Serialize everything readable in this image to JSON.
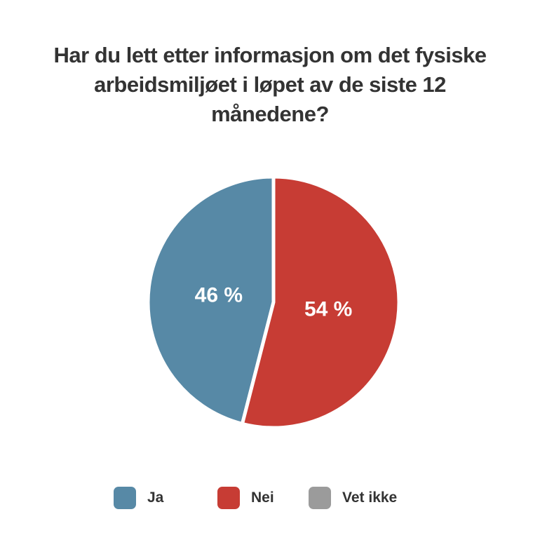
{
  "chart_data": {
    "type": "pie",
    "title": "Har du lett etter informasjon om det fysiske arbeidsmiljøet i løpet av de siste 12 månedene?",
    "categories": [
      "Ja",
      "Nei",
      "Vet ikke"
    ],
    "values": [
      46,
      54,
      0
    ],
    "data_labels": [
      "46 %",
      "54 %",
      ""
    ],
    "colors": [
      "#5789a6",
      "#c73c34",
      "#9b9b9b"
    ],
    "legend_position": "bottom"
  },
  "legend": {
    "items": [
      {
        "label": "Ja",
        "color": "#5789a6"
      },
      {
        "label": "Nei",
        "color": "#c73c34"
      },
      {
        "label": "Vet ikke",
        "color": "#9b9b9b"
      }
    ]
  }
}
